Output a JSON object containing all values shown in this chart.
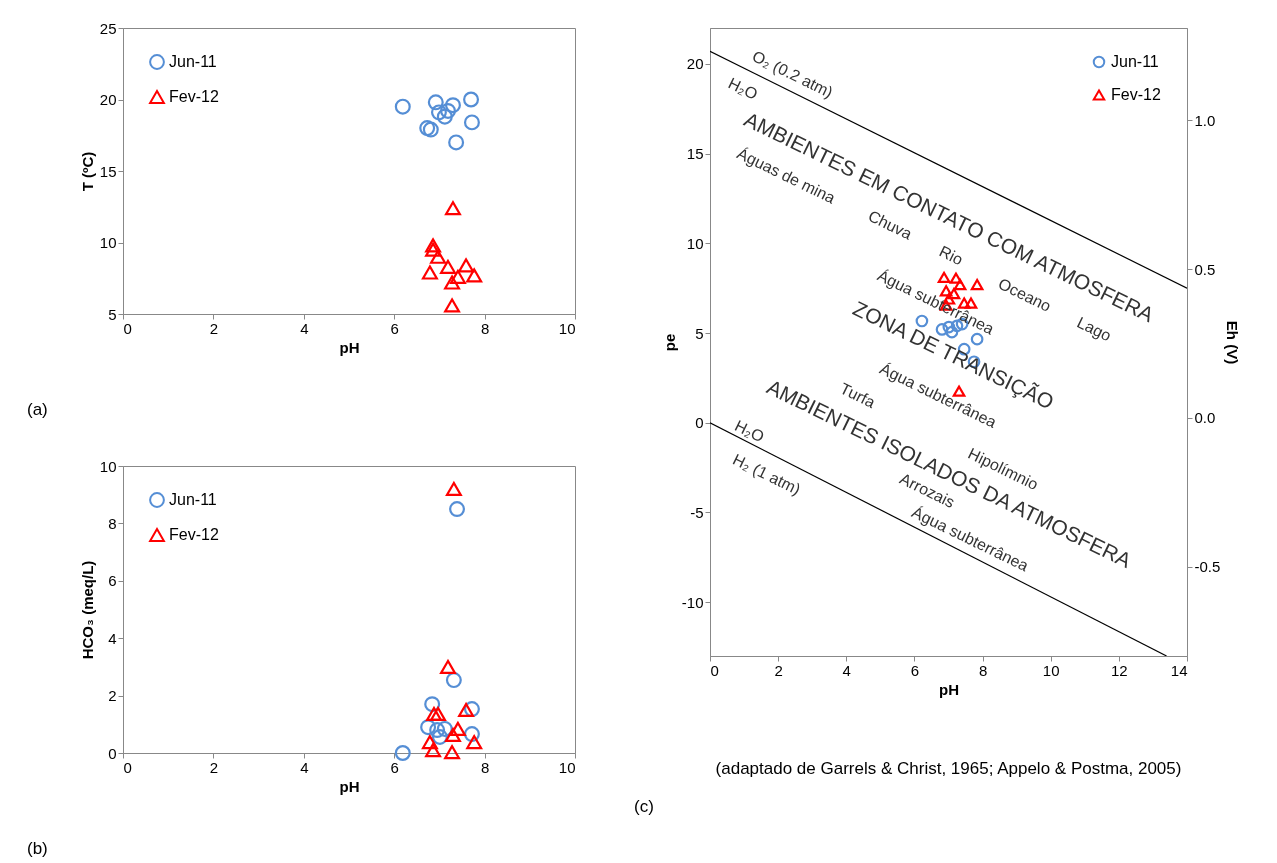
{
  "chart_data": [
    {
      "type": "scatter",
      "xlabel": "pH",
      "ylabel": "T (ºC)",
      "xlim": [
        0,
        10
      ],
      "xticks": [
        0,
        2,
        4,
        6,
        8,
        10
      ],
      "ylim": [
        5,
        25
      ],
      "yticks": [
        5,
        10,
        15,
        20,
        25
      ],
      "grid": false,
      "legend": "top left",
      "series": [
        {
          "name": "Jun-11",
          "color": "#558ed5",
          "marker": "circle",
          "x": [
            6.19,
            6.92,
            7.3,
            7.7,
            6.99,
            7.12,
            6.73,
            6.81,
            7.72,
            7.37,
            7.19
          ],
          "values": [
            19.5,
            19.8,
            19.6,
            20.0,
            19.1,
            18.8,
            18.0,
            17.9,
            18.4,
            17.0,
            19.2
          ]
        },
        {
          "name": "Fev-12",
          "color": "#ff0000",
          "marker": "triangle",
          "x": [
            7.3,
            6.86,
            6.86,
            6.97,
            7.19,
            7.59,
            6.79,
            7.77,
            7.41,
            7.28,
            7.28
          ],
          "values": [
            12.4,
            9.8,
            9.5,
            9.0,
            8.3,
            8.4,
            7.9,
            7.7,
            7.6,
            7.2,
            5.6
          ]
        }
      ],
      "annotations": [
        "(a)"
      ]
    },
    {
      "type": "scatter",
      "xlabel": "pH",
      "ylabel": "HCO₃ (meq/L)",
      "xlim": [
        0,
        10
      ],
      "xticks": [
        0,
        2,
        4,
        6,
        8,
        10
      ],
      "ylim": [
        0,
        10
      ],
      "yticks": [
        0,
        2,
        4,
        6,
        8,
        10
      ],
      "grid": false,
      "legend": "top left",
      "series": [
        {
          "name": "Jun-11",
          "color": "#558ed5",
          "marker": "circle",
          "x": [
            7.39,
            7.32,
            6.84,
            7.72,
            6.75,
            6.95,
            7.12,
            7.72,
            7.01,
            6.19
          ],
          "values": [
            8.5,
            2.54,
            1.7,
            1.53,
            0.9,
            0.8,
            0.84,
            0.66,
            0.56,
            0.0
          ]
        },
        {
          "name": "Fev-12",
          "color": "#ff0000",
          "marker": "triangle",
          "x": [
            7.32,
            7.19,
            6.88,
            6.97,
            7.59,
            7.41,
            7.3,
            6.79,
            7.77,
            6.86,
            7.28
          ],
          "values": [
            9.2,
            3.0,
            1.36,
            1.36,
            1.5,
            0.84,
            0.63,
            0.38,
            0.38,
            0.1,
            0.03
          ]
        }
      ],
      "annotations": [
        "(b)"
      ]
    },
    {
      "type": "scatter",
      "xlabel": "pH",
      "ylabel": "pe",
      "y2label": "Eh (V)",
      "xlim": [
        0,
        14
      ],
      "xticks": [
        0,
        2,
        4,
        6,
        8,
        10,
        12,
        14
      ],
      "ylim": [
        -13,
        22
      ],
      "yticks": [
        -10,
        -5,
        0,
        5,
        10,
        15,
        20
      ],
      "y2lim": [
        -0.8,
        1.31
      ],
      "y2ticks": [
        {
          "value": -0.5,
          "label": "-0.5"
        },
        {
          "value": 0,
          "label": "0.0"
        },
        {
          "value": 0.5,
          "label": "0.5"
        },
        {
          "value": 1,
          "label": "1.0"
        }
      ],
      "grid": false,
      "legend": "top right",
      "series": [
        {
          "type": "line",
          "color": "#000000",
          "line_style": "solid",
          "x": [
            0,
            14
          ],
          "values": [
            20.7,
            7.5
          ]
        },
        {
          "type": "line",
          "color": "#000000",
          "line_style": "solid",
          "x": [
            0,
            13.4
          ],
          "values": [
            0,
            -13
          ]
        },
        {
          "name": "Jun-11",
          "color": "#558ed5",
          "marker": "circle",
          "x": [
            6.22,
            7.01,
            6.81,
            7.25,
            7.4,
            7.1,
            7.84,
            7.46,
            7.75
          ],
          "values": [
            5.67,
            5.33,
            5.2,
            5.4,
            5.5,
            5.05,
            4.66,
            4.1,
            3.4
          ]
        },
        {
          "name": "Fev-12",
          "color": "#ff0000",
          "marker": "triangle",
          "x": [
            6.87,
            7.22,
            7.84,
            7.34,
            6.93,
            7.16,
            7.01,
            7.46,
            7.66,
            6.93,
            7.31
          ],
          "values": [
            8.1,
            8.06,
            7.7,
            7.7,
            7.35,
            7.2,
            6.9,
            6.67,
            6.67,
            6.56,
            1.76
          ]
        }
      ],
      "annotations": [
        "(c)",
        "(adaptado de Garrels & Christ, 1965; Appelo & Postma, 2005)",
        "O₂ (0.2 atm)",
        "H₂O",
        "AMBIENTES EM CONTATO COM ATMOSFERA",
        "Águas de mina",
        "Chuva",
        "Rio",
        "Oceano",
        "Lago",
        "Água subterrânea",
        "ZONA DE TRANSIÇÃO",
        "Água subterrânea",
        "Turfa",
        "AMBIENTES ISOLADOS DA ATMOSFERA",
        "Hipolímnio",
        "Arrozais",
        "Água subterrânea",
        "H₂O",
        "H₂ (1 atm)"
      ]
    }
  ]
}
